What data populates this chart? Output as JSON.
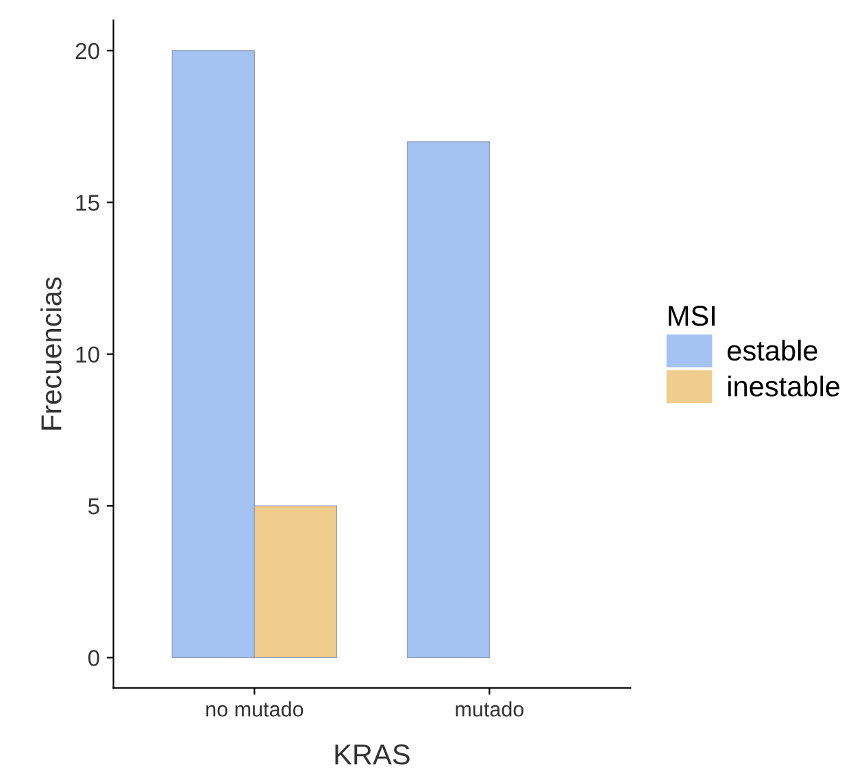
{
  "chart_data": {
    "type": "bar",
    "xlabel": "KRAS",
    "ylabel": "Frecuencias",
    "legend_title": "MSI",
    "categories": [
      "no mutado",
      "mutado"
    ],
    "series": [
      {
        "name": "estable",
        "color": "#a4c3f2",
        "values": [
          20,
          17
        ]
      },
      {
        "name": "inestable",
        "color": "#f0cd8d",
        "values": [
          5,
          null
        ]
      }
    ],
    "ylim": [
      -1,
      21
    ],
    "yticks": [
      0,
      5,
      10,
      15,
      20
    ],
    "grid": false,
    "legend": "right"
  }
}
